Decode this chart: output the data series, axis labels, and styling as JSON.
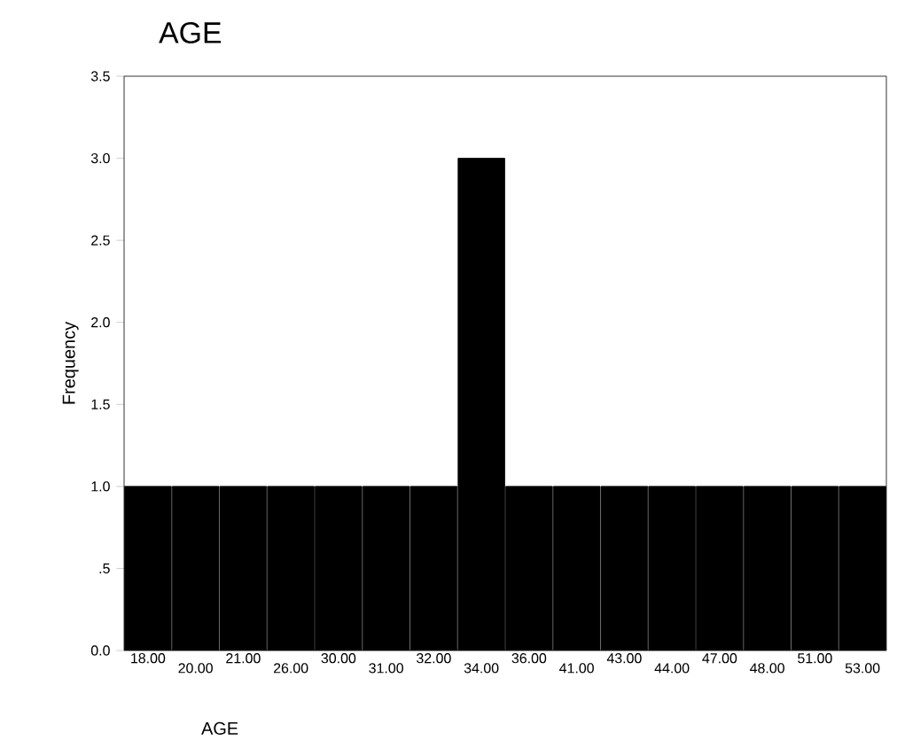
{
  "chart_data": {
    "type": "bar",
    "title": "AGE",
    "xlabel": "AGE",
    "ylabel": "Frequency",
    "categories": [
      "18.00",
      "20.00",
      "21.00",
      "26.00",
      "30.00",
      "31.00",
      "32.00",
      "34.00",
      "36.00",
      "41.00",
      "43.00",
      "44.00",
      "47.00",
      "48.00",
      "51.00",
      "53.00"
    ],
    "values": [
      1,
      1,
      1,
      1,
      1,
      1,
      1,
      3,
      1,
      1,
      1,
      1,
      1,
      1,
      1,
      1
    ],
    "color": "#000000",
    "ylim": [
      0,
      3.5
    ],
    "yticks": [
      {
        "value": 0,
        "label": "0.0"
      },
      {
        "value": 0.5,
        "label": ".5"
      },
      {
        "value": 1,
        "label": "1.0"
      },
      {
        "value": 1.5,
        "label": "1.5"
      },
      {
        "value": 2,
        "label": "2.0"
      },
      {
        "value": 2.5,
        "label": "2.5"
      },
      {
        "value": 3,
        "label": "3.0"
      },
      {
        "value": 3.5,
        "label": "3.5"
      }
    ],
    "grid": false
  }
}
